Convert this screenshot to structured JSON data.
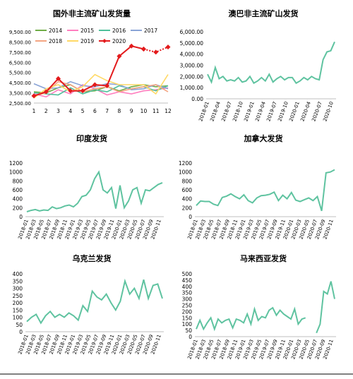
{
  "colors": {
    "y2014": "#70ad47",
    "y2015": "#ff7fbf",
    "y2016": "#4fbf9a",
    "y2017": "#8aa4d6",
    "y2018": "#f4a582",
    "y2019": "#ffd966",
    "y2020": "#e31a1c",
    "teal": "#5fc3a0",
    "axis": "#bfbfbf",
    "text": "#000000"
  },
  "chart_data": [
    {
      "type": "line",
      "title": "国外非主流矿山发货量",
      "xlabel": "",
      "ylabel": "",
      "categories": [
        "1",
        "2",
        "3",
        "4",
        "5",
        "6",
        "7",
        "8",
        "9",
        "10",
        "11",
        "12"
      ],
      "yticks": [
        "9,500.00",
        "8,500.00",
        "7,500.00",
        "6,500.00",
        "5,500.00",
        "4,500.00",
        "3,500.00",
        "2,500.00"
      ],
      "ylim": [
        2500,
        9500
      ],
      "legend": "top",
      "series": [
        {
          "name": "2014",
          "values": [
            3600,
            3500,
            4000,
            4300,
            3600,
            3700,
            4100,
            3700,
            4100,
            4300,
            4100,
            4200
          ]
        },
        {
          "name": "2015",
          "values": [
            3400,
            3100,
            3800,
            3400,
            4300,
            3900,
            3300,
            3600,
            3400,
            3700,
            3800,
            4000
          ]
        },
        {
          "name": "2016",
          "values": [
            3500,
            3400,
            3300,
            4000,
            3400,
            3800,
            3600,
            4200,
            3900,
            4100,
            3700,
            4200
          ]
        },
        {
          "name": "2017",
          "values": [
            4400,
            3900,
            4000,
            4600,
            4200,
            4100,
            4400,
            4300,
            3800,
            3900,
            4300,
            3900
          ]
        },
        {
          "name": "2018",
          "values": [
            3200,
            3500,
            4600,
            4300,
            3600,
            3900,
            4100,
            3600,
            3900,
            4100,
            4300,
            3600
          ]
        },
        {
          "name": "2019",
          "values": [
            3000,
            3900,
            4300,
            3600,
            4100,
            5300,
            4700,
            4300,
            4300,
            4300,
            3400,
            5300
          ]
        },
        {
          "name": "2020",
          "values": [
            3200,
            3600,
            4900,
            3700,
            3700,
            4300,
            4200,
            7100,
            8100,
            7800,
            null,
            null
          ]
        },
        {
          "name": "2020-dotted",
          "values": [
            null,
            null,
            null,
            null,
            null,
            null,
            null,
            null,
            null,
            7800,
            7500,
            8000
          ]
        }
      ]
    },
    {
      "type": "line",
      "title": "澳巴非主流矿山发货",
      "xlabel": "",
      "ylabel": "",
      "yticks": [
        "6,000.00",
        "5,000.00",
        "4,000.00",
        "3,000.00",
        "2,000.00",
        "1,000.00",
        "0.00"
      ],
      "ylim": [
        0,
        6000
      ],
      "xticks": [
        "2018-01",
        "2018-04",
        "2018-07",
        "2018-10",
        "2019-01",
        "2019-04",
        "2019-07",
        "2019-10",
        "2020-01",
        "2020-04",
        "2020-07",
        "2020-10"
      ],
      "series": [
        {
          "name": "",
          "values": [
            2200,
            1500,
            2800,
            1800,
            2000,
            1600,
            1700,
            1600,
            1900,
            1500,
            1600,
            2000,
            1400,
            1600,
            1900,
            1600,
            2200,
            1500,
            1800,
            2000,
            1700,
            1900,
            1900,
            1400,
            1600,
            1900,
            1700,
            2000,
            1800,
            1700,
            3500,
            4200,
            4300,
            5100
          ]
        }
      ]
    },
    {
      "type": "line",
      "title": "印度发货",
      "xlabel": "",
      "ylabel": "",
      "yticks": [
        "1200",
        "1000",
        "800",
        "600",
        "400",
        "200",
        "0"
      ],
      "ylim": [
        0,
        1200
      ],
      "xticks": [
        "2018-01",
        "2018-03",
        "2018-05",
        "2018-07",
        "2018-09",
        "2018-11",
        "2019-01",
        "2019-03",
        "2019-05",
        "2019-07",
        "2019-09",
        "2019-11",
        "2020-01",
        "2020-03",
        "2020-05",
        "2020-07",
        "2020-09",
        "2020-11"
      ],
      "series": [
        {
          "name": "",
          "values": [
            110,
            140,
            160,
            130,
            150,
            140,
            220,
            180,
            200,
            240,
            260,
            220,
            300,
            450,
            480,
            600,
            850,
            1000,
            600,
            530,
            650,
            180,
            700,
            200,
            350,
            600,
            650,
            300,
            600,
            580,
            650,
            720,
            760
          ]
        }
      ]
    },
    {
      "type": "line",
      "title": "加拿大发货",
      "xlabel": "",
      "ylabel": "",
      "yticks": [
        "1200",
        "1000",
        "800",
        "600",
        "400",
        "200",
        "0"
      ],
      "ylim": [
        0,
        1200
      ],
      "xticks": [
        "2018-01",
        "2018-03",
        "2018-05",
        "2018-07",
        "2018-09",
        "2018-11",
        "2019-01",
        "2019-03",
        "2019-05",
        "2019-07",
        "2019-09",
        "2019-11",
        "2020-01",
        "2020-03",
        "2020-05",
        "2020-07",
        "2020-09",
        "2020-11"
      ],
      "series": [
        {
          "name": "",
          "values": [
            250,
            350,
            340,
            340,
            280,
            250,
            430,
            460,
            510,
            450,
            400,
            490,
            360,
            310,
            420,
            470,
            480,
            500,
            550,
            360,
            480,
            400,
            540,
            370,
            340,
            380,
            420,
            360,
            450,
            130,
            980,
            1000,
            1050
          ]
        }
      ]
    },
    {
      "type": "line",
      "title": "乌克兰发货",
      "xlabel": "",
      "ylabel": "",
      "yticks": [
        "400",
        "350",
        "300",
        "250",
        "200",
        "150",
        "100",
        "50",
        "0"
      ],
      "ylim": [
        0,
        400
      ],
      "xticks": [
        "2018-01",
        "2018-03",
        "2018-05",
        "2018-07",
        "2018-09",
        "2018-11",
        "2019-01",
        "2019-03",
        "2019-05",
        "2019-07",
        "2019-09",
        "2019-11",
        "2020-01",
        "2020-03",
        "2020-05",
        "2020-07",
        "2020-09",
        "2020-11"
      ],
      "series": [
        {
          "name": "",
          "values": [
            70,
            100,
            120,
            60,
            110,
            140,
            100,
            120,
            100,
            130,
            110,
            80,
            180,
            140,
            280,
            240,
            220,
            260,
            200,
            150,
            210,
            350,
            260,
            300,
            230,
            360,
            230,
            320,
            330,
            230
          ]
        }
      ]
    },
    {
      "type": "line",
      "title": "马来西亚发货",
      "xlabel": "",
      "ylabel": "",
      "yticks": [
        "500",
        "450",
        "400",
        "350",
        "300",
        "250",
        "200",
        "150",
        "100",
        "50",
        "0"
      ],
      "ylim": [
        0,
        500
      ],
      "xticks": [
        "2018-01",
        "2018-03",
        "2018-05",
        "2018-07",
        "2018-09",
        "2018-11",
        "2019-01",
        "2019-03",
        "2019-05",
        "2019-07",
        "2019-09",
        "2019-11",
        "2020-01",
        "2020-03",
        "2020-05",
        "2020-07",
        "2020-09",
        "2020-11"
      ],
      "series": [
        {
          "name": "",
          "values": [
            60,
            130,
            60,
            110,
            150,
            60,
            140,
            110,
            130,
            140,
            70,
            140,
            130,
            110,
            180,
            100,
            220,
            130,
            160,
            150,
            210,
            230,
            170,
            210,
            180,
            160,
            140,
            220,
            100,
            140,
            150,
            null,
            null,
            30,
            100,
            360,
            340,
            440,
            300
          ]
        }
      ]
    }
  ]
}
